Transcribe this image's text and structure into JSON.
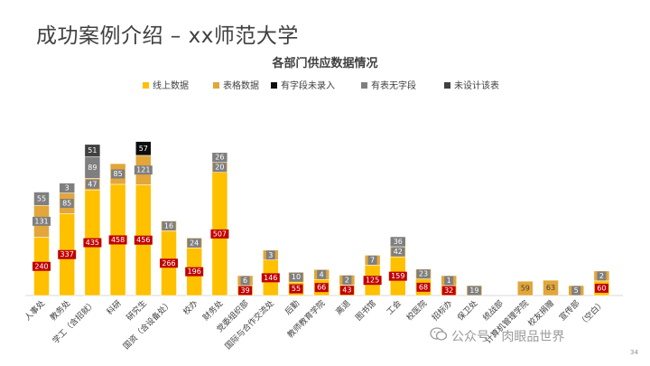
{
  "slide": {
    "title": "成功案例介绍 – xx师范大学",
    "page_number": "34",
    "watermark": "公众号 · 肉眼品世界"
  },
  "colors": {
    "线上数据": "#ffc000",
    "表格数据": "#e2a63a",
    "有字段未录入": "#0d0d0d",
    "有表无字段": "#7f7f7f",
    "未设计该表": "#404040",
    "value_label_bg": "#c00000"
  },
  "chart_data": {
    "type": "bar",
    "stacked": true,
    "title": "各部门供应数据情况",
    "legend_position": "top",
    "grid": false,
    "categories": [
      "人事处",
      "教务处",
      "学工（含招就）",
      "科研",
      "研究生",
      "国资（含设备处）",
      "校办",
      "财务处",
      "党委组织部",
      "国际与合作交流处",
      "后勤",
      "教师教育学院",
      "离退",
      "图书馆",
      "工会",
      "校医院",
      "招标办",
      "保卫处",
      "统战部",
      "计算机管理学院",
      "校友捐赠",
      "宣传部",
      "（空白）"
    ],
    "series": [
      {
        "name": "线上数据",
        "values": [
          240,
          337,
          435,
          458,
          456,
          266,
          196,
          507,
          39,
          146,
          55,
          66,
          43,
          125,
          159,
          68,
          32,
          0,
          0,
          0,
          0,
          0,
          60
        ]
      },
      {
        "name": "表格数据",
        "values": [
          131,
          85,
          47,
          85,
          121,
          16,
          24,
          20,
          6,
          3,
          10,
          4,
          2,
          7,
          42,
          23,
          1,
          19,
          0,
          59,
          63,
          5,
          2
        ]
      },
      {
        "name": "有字段未录入",
        "values": [
          0,
          0,
          0,
          0,
          57,
          0,
          0,
          0,
          0,
          0,
          0,
          0,
          0,
          0,
          0,
          0,
          0,
          0,
          0,
          0,
          0,
          0,
          0
        ]
      },
      {
        "name": "有表无字段",
        "values": [
          55,
          3,
          89,
          0,
          0,
          0,
          0,
          26,
          0,
          0,
          0,
          0,
          0,
          0,
          36,
          0,
          0,
          0,
          0,
          0,
          0,
          0,
          0
        ]
      },
      {
        "name": "未设计该表",
        "values": [
          0,
          0,
          51,
          0,
          0,
          0,
          0,
          0,
          0,
          0,
          0,
          0,
          0,
          0,
          0,
          0,
          0,
          0,
          0,
          0,
          0,
          0,
          0
        ]
      }
    ],
    "ylim": [
      0,
      800
    ]
  }
}
